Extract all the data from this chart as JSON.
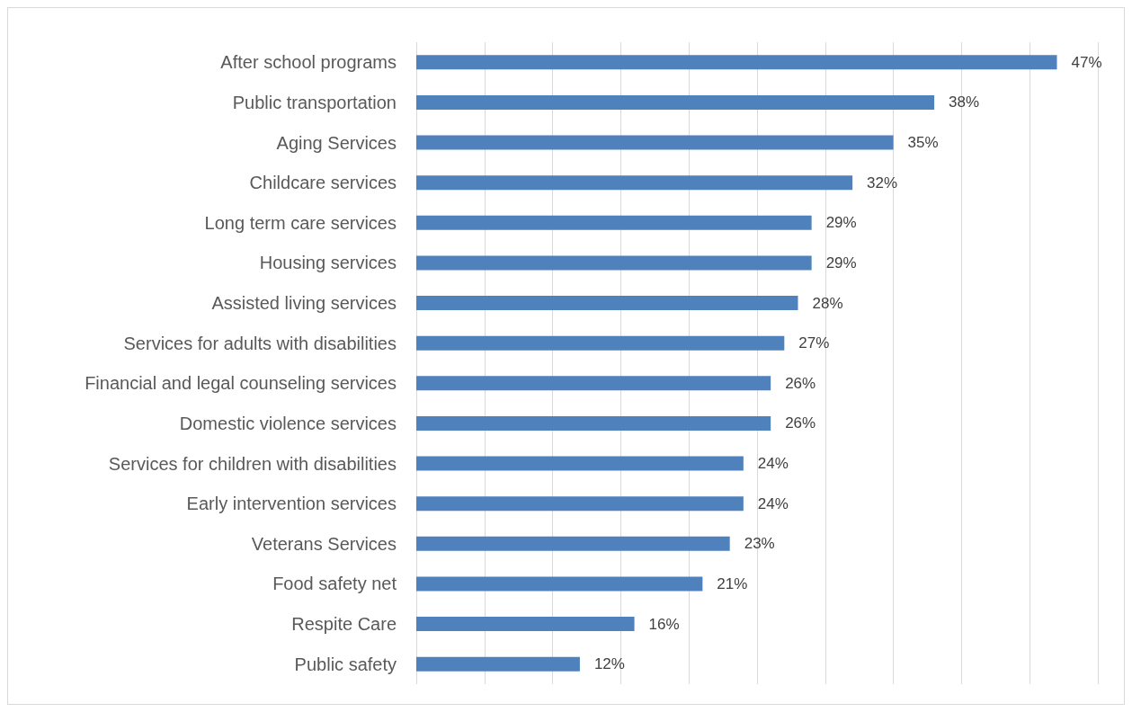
{
  "chart_data": {
    "type": "bar",
    "orientation": "horizontal",
    "categories": [
      "After school programs",
      "Public transportation",
      "Aging Services",
      "Childcare services",
      "Long term care services",
      "Housing services",
      "Assisted living services",
      "Services for adults with disabilities",
      "Financial and legal counseling services",
      "Domestic violence services",
      "Services for children with disabilities",
      "Early intervention services",
      "Veterans Services",
      "Food safety net",
      "Respite Care",
      "Public safety"
    ],
    "values": [
      47,
      38,
      35,
      32,
      29,
      29,
      28,
      27,
      26,
      26,
      24,
      24,
      23,
      21,
      16,
      12
    ],
    "value_labels": [
      "47%",
      "38%",
      "35%",
      "32%",
      "29%",
      "29%",
      "28%",
      "27%",
      "26%",
      "26%",
      "24%",
      "24%",
      "23%",
      "21%",
      "16%",
      "12%"
    ],
    "color": "#4f81bd",
    "xlim": [
      0,
      50
    ],
    "xticks": [
      {
        "value": 0,
        "label": null
      },
      {
        "value": 5,
        "label": null
      },
      {
        "value": 10,
        "label": null
      },
      {
        "value": 15,
        "label": null
      },
      {
        "value": 20,
        "label": null
      },
      {
        "value": 25,
        "label": null
      },
      {
        "value": 30,
        "label": null
      },
      {
        "value": 35,
        "label": null
      },
      {
        "value": 40,
        "label": null
      },
      {
        "value": 45,
        "label": null
      },
      {
        "value": 50,
        "label": null
      }
    ],
    "tick_labels": "y",
    "grid": "x"
  }
}
